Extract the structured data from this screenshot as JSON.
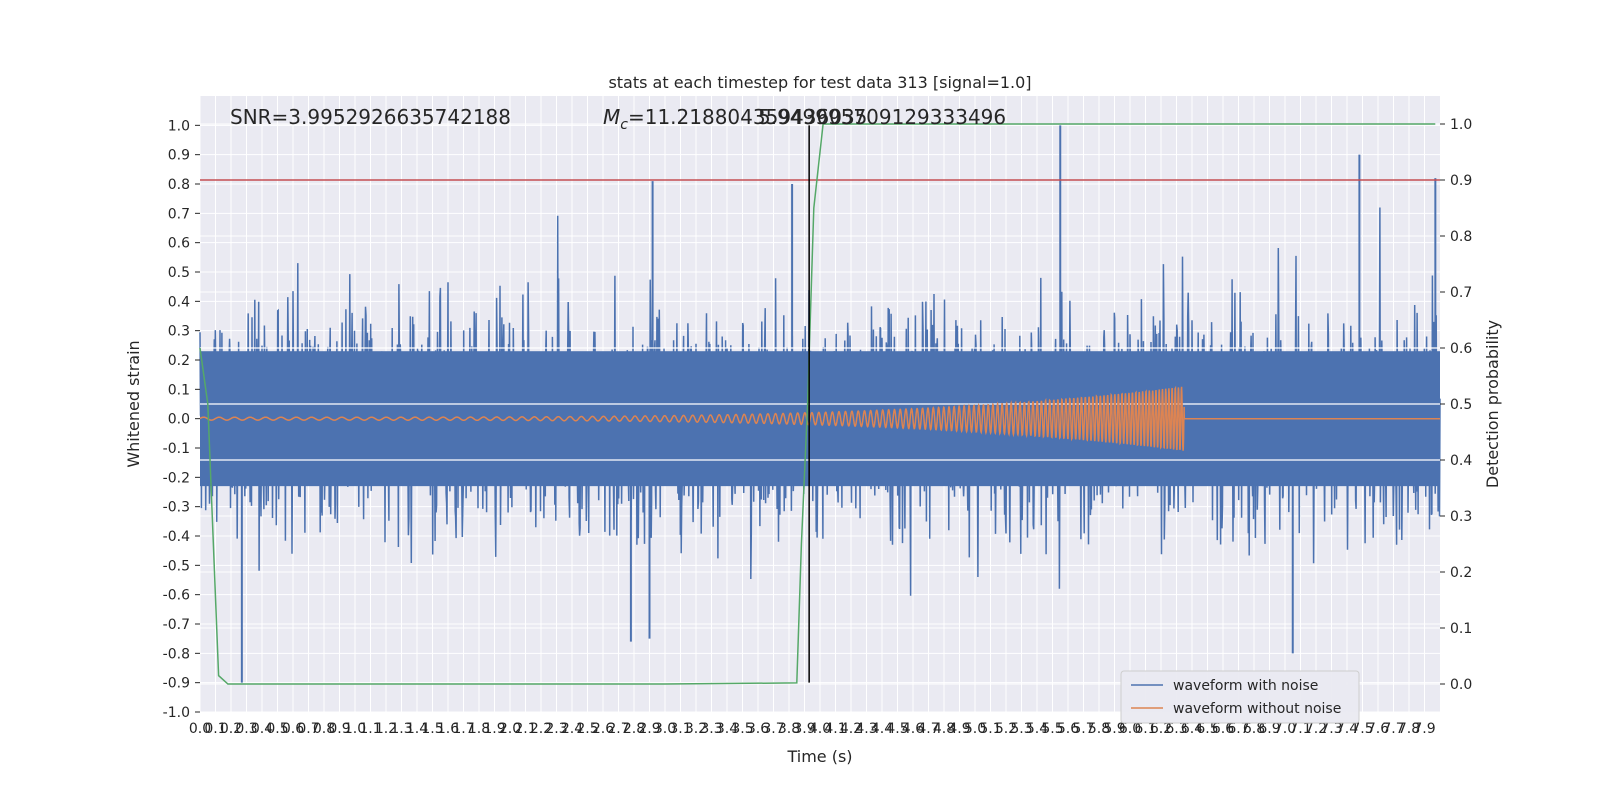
{
  "chart_data": {
    "type": "line",
    "title": "stats at each timestep for test data 313 [signal=1.0]",
    "xlabel": "Time (s)",
    "ylabel": "Whitened strain",
    "y2label": "Detection probability",
    "xlim": [
      0.0,
      8.0
    ],
    "ylim": [
      -1.0,
      1.1
    ],
    "y2lim": [
      -0.05,
      1.05
    ],
    "xticks": [
      0.0,
      0.1,
      0.2,
      0.3,
      0.4,
      0.5,
      0.6,
      0.7,
      0.8,
      0.9,
      1.0,
      1.1,
      1.2,
      1.3,
      1.4,
      1.5,
      1.6,
      1.7,
      1.8,
      1.9,
      2.0,
      2.1,
      2.2,
      2.3,
      2.4,
      2.5,
      2.6,
      2.7,
      2.8,
      2.9,
      3.0,
      3.1,
      3.2,
      3.3,
      3.4,
      3.5,
      3.6,
      3.7,
      3.8,
      3.9,
      4.0,
      4.1,
      4.2,
      4.3,
      4.4,
      4.5,
      4.6,
      4.7,
      4.8,
      4.9,
      5.0,
      5.1,
      5.2,
      5.3,
      5.4,
      5.5,
      5.6,
      5.7,
      5.8,
      5.9,
      6.0,
      6.1,
      6.2,
      6.3,
      6.4,
      6.5,
      6.6,
      6.7,
      6.8,
      6.9,
      7.0,
      7.1,
      7.2,
      7.3,
      7.4,
      7.5,
      7.6,
      7.7,
      7.8,
      7.9
    ],
    "yticks": [
      -1.0,
      -0.9,
      -0.8,
      -0.7,
      -0.6,
      -0.5,
      -0.4,
      -0.3,
      -0.2,
      -0.1,
      0.0,
      0.1,
      0.2,
      0.3,
      0.4,
      0.5,
      0.6,
      0.7,
      0.8,
      0.9,
      1.0
    ],
    "y2ticks": [
      0.0,
      0.1,
      0.2,
      0.3,
      0.4,
      0.5,
      0.6,
      0.7,
      0.8,
      0.9,
      1.0
    ],
    "grid": true,
    "legend_position": "lower-right",
    "series": [
      {
        "name": "waveform with noise",
        "axis": "left",
        "color": "#4c72b0",
        "description_values": {
          "core_envelope": 0.23,
          "typical_peak": 0.5,
          "max_peaks": [
            [
              2.92,
              0.81
            ],
            [
              3.82,
              0.8
            ],
            [
              5.55,
              1.0
            ],
            [
              7.48,
              0.9
            ],
            [
              7.97,
              0.82
            ]
          ],
          "min_peaks": [
            [
              0.27,
              -0.9
            ],
            [
              2.9,
              -0.75
            ],
            [
              2.78,
              -0.76
            ],
            [
              7.05,
              -0.8
            ]
          ]
        }
      },
      {
        "name": "waveform without noise",
        "axis": "left",
        "color": "#dd8452",
        "chirp_start": 0.0,
        "chirp_end": 6.35,
        "amp_start": 0.005,
        "amp_end": 0.11
      },
      {
        "name": "",
        "axis": "right",
        "color": "#55a868",
        "x": [
          0.0,
          0.05,
          0.12,
          0.18,
          0.3,
          1.0,
          2.0,
          3.0,
          3.85,
          3.88,
          3.92,
          3.96,
          4.02,
          4.5,
          5.0,
          6.0,
          7.0,
          7.97
        ],
        "y": [
          0.6,
          0.5,
          0.015,
          0.0,
          0.0,
          0.0,
          0.0,
          0.0,
          0.002,
          0.25,
          0.5,
          0.85,
          1.0,
          1.0,
          1.0,
          1.0,
          1.0,
          1.0
        ]
      }
    ],
    "hlines": [
      {
        "axis": "right",
        "value": 0.9,
        "color": "#c44e52"
      }
    ],
    "vlines": [
      {
        "x": 3.93,
        "ymin": -0.9,
        "ymax": 1.0,
        "color": "#000000"
      }
    ],
    "annotations": {
      "snr": "SNR=3.9952926635742188",
      "mc": "M",
      "mc_sub": "c",
      "mc_value": "=11.218804359436035",
      "overlap": "5.949995709129333496"
    }
  },
  "legend": {
    "items": [
      {
        "label": "waveform with noise",
        "color": "#4c72b0"
      },
      {
        "label": "waveform without noise",
        "color": "#dd8452"
      }
    ]
  }
}
